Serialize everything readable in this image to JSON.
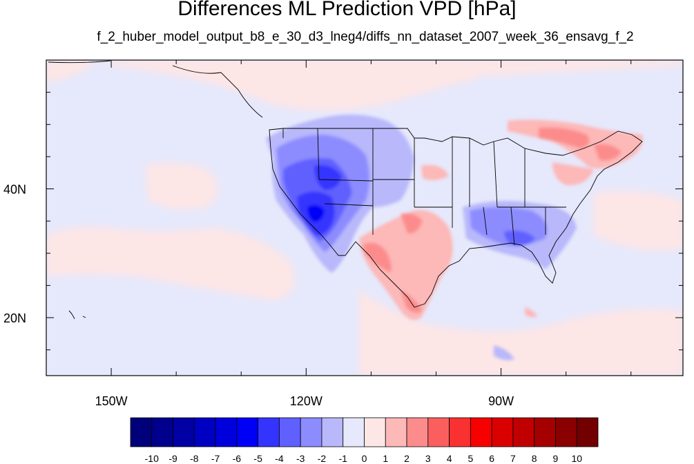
{
  "title": "Differences ML Prediction VPD [hPa]",
  "subtitle": "f_2_huber_model_output_b8_e_30_d3_lneg4/diffs_nn_dataset_2007_week_36_ensavg_f_2",
  "map": {
    "lon_range": [
      -160,
      -62
    ],
    "lat_range": [
      11,
      60
    ],
    "background_color": "#e6e8fb"
  },
  "axes": {
    "x_ticks": [
      {
        "lon": -150,
        "label": "150W"
      },
      {
        "lon": -120,
        "label": "120W"
      },
      {
        "lon": -90,
        "label": "90W"
      }
    ],
    "y_ticks": [
      {
        "lat": 20,
        "label": "20N"
      },
      {
        "lat": 40,
        "label": "40N"
      }
    ]
  },
  "colorbar": {
    "labels": [
      "-10",
      "-9",
      "-8",
      "-7",
      "-6",
      "-5",
      "-4",
      "-3",
      "-2",
      "-1",
      "0",
      "1",
      "2",
      "3",
      "4",
      "5",
      "6",
      "7",
      "8",
      "9",
      "10"
    ],
    "colors": [
      "#00007a",
      "#00008c",
      "#0000a5",
      "#0000c3",
      "#0000dc",
      "#0000f7",
      "#3434ff",
      "#6060ff",
      "#8c8cff",
      "#b8b8fb",
      "#e6e8fb",
      "#fde6e6",
      "#fdb8b8",
      "#fc8c8c",
      "#fb5e5e",
      "#f93131",
      "#f70000",
      "#da0000",
      "#c00000",
      "#a40000",
      "#8a0000",
      "#720000"
    ]
  }
}
